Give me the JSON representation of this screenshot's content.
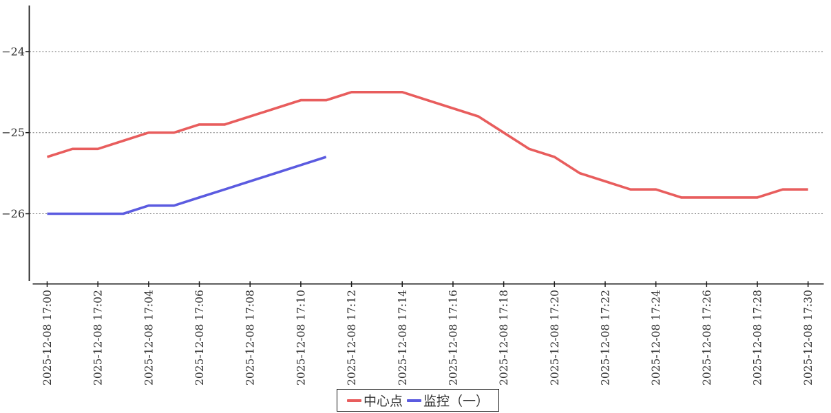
{
  "chart_data": {
    "type": "line",
    "title": "",
    "xlabel": "",
    "ylabel": "",
    "x_minutes_per_point": 1,
    "x_minutes_per_tick": 2,
    "x_range": [
      "2025-12-08 17:00",
      "2025-12-08 17:30"
    ],
    "ylim": [
      -26.85,
      -23.4
    ],
    "grid": "horizontal-dotted",
    "legend_position": "bottom-center",
    "y_ticks": [
      {
        "value": -24,
        "label": "−24"
      },
      {
        "value": -25,
        "label": "−25"
      },
      {
        "value": -26,
        "label": "−26"
      }
    ],
    "x_tick_labels": [
      "2025-12-08 17:00",
      "2025-12-08 17:02",
      "2025-12-08 17:04",
      "2025-12-08 17:06",
      "2025-12-08 17:08",
      "2025-12-08 17:10",
      "2025-12-08 17:12",
      "2025-12-08 17:14",
      "2025-12-08 17:16",
      "2025-12-08 17:18",
      "2025-12-08 17:20",
      "2025-12-08 17:22",
      "2025-12-08 17:24",
      "2025-12-08 17:26",
      "2025-12-08 17:28",
      "2025-12-08 17:30"
    ],
    "series": [
      {
        "name": "中心点",
        "color": "#e85d5d",
        "start_index": 0,
        "values": [
          -25.3,
          -25.2,
          -25.2,
          -25.1,
          -25.0,
          -25.0,
          -24.9,
          -24.9,
          -24.8,
          -24.7,
          -24.6,
          -24.6,
          -24.5,
          -24.5,
          -24.5,
          -24.6,
          -24.7,
          -24.8,
          -25.0,
          -25.2,
          -25.3,
          -25.5,
          -25.6,
          -25.7,
          -25.7,
          -25.8,
          -25.8,
          -25.8,
          -25.8,
          -25.7,
          -25.7
        ]
      },
      {
        "name": "监控（一）",
        "color": "#5b5be0",
        "start_index": 0,
        "values": [
          -26.0,
          -26.0,
          -26.0,
          -26.0,
          -25.9,
          -25.9,
          -25.8,
          -25.7,
          -25.6,
          -25.5,
          -25.4,
          -25.3
        ]
      }
    ]
  }
}
